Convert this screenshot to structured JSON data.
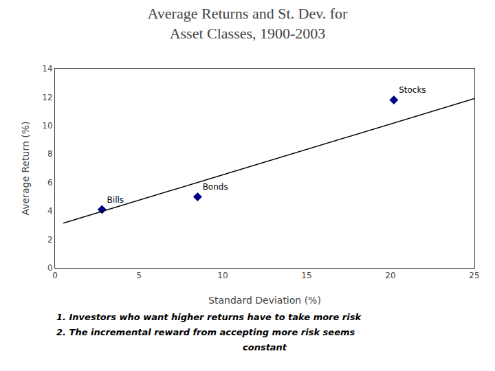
{
  "chart_data": {
    "type": "scatter",
    "title": "Average Returns and St. Dev. for\nAsset Classes, 1900-2003",
    "xlabel": "Standard Deviation (%)",
    "ylabel": "Average Return (%)",
    "series": [
      {
        "type": "scatter",
        "x": [
          2.8,
          8.5,
          20.2
        ],
        "values": [
          4.1,
          5.0,
          11.8
        ],
        "labels": [
          "Bills",
          "Bonds",
          "Stocks"
        ],
        "color": "#00008B",
        "marker": "diamond"
      },
      {
        "type": "line",
        "x": [
          0.5,
          25
        ],
        "values": [
          3.15,
          11.9
        ],
        "color": "#000000",
        "line_style": "solid"
      }
    ],
    "xlim": [
      0,
      25
    ],
    "ylim": [
      0,
      14
    ],
    "xticks": [
      0,
      5,
      10,
      15,
      20,
      25
    ],
    "yticks": [
      0,
      2,
      4,
      6,
      8,
      10,
      12,
      14
    ],
    "grid": false,
    "annotations": [
      "1. Investors who want higher returns have to take more risk",
      "2. The incremental reward from accepting more risk seems",
      "constant"
    ]
  }
}
